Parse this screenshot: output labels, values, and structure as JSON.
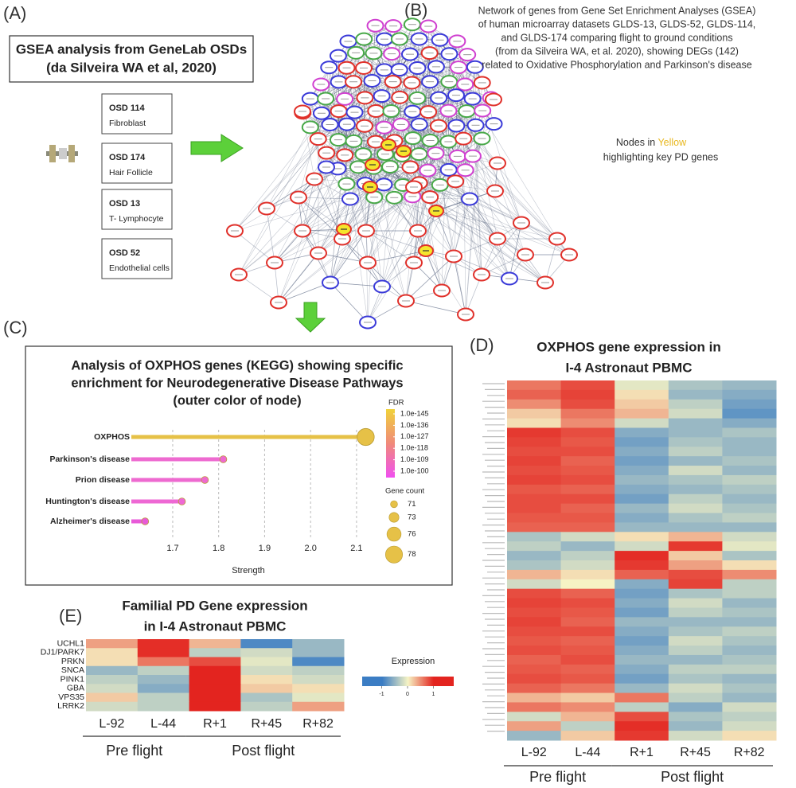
{
  "panels": {
    "A": {
      "label": "(A)",
      "title_lines": [
        "GSEA analysis from GeneLab OSDs",
        "(da Silveira WA et al, 2020)"
      ],
      "datasets": [
        {
          "id": "OSD 114",
          "tissue": "Fibroblast"
        },
        {
          "id": "OSD 174",
          "tissue": "Hair Follicle"
        },
        {
          "id": "OSD 13",
          "tissue": "T- Lymphocyte"
        },
        {
          "id": "OSD 52",
          "tissue": "Endothelial cells"
        }
      ]
    },
    "B": {
      "label": "(B)",
      "caption_lines": [
        "Network of genes from Gene Set Enrichment Analyses (GSEA)",
        "of human microarray datasets GLDS-13, GLDS-52, GLDS-114,",
        "and GLDS-174 comparing flight to ground conditions",
        "(from da Silveira WA, et al. 2020), showing DEGs (142)",
        "related to Oxidative Phosphorylation and Parkinson's disease"
      ],
      "note_prefix": "Nodes in",
      "note_highlight": "Yellow",
      "note_rest": "highlighting key PD genes"
    },
    "C": {
      "label": "(C)"
    },
    "D": {
      "label": "(D)"
    },
    "E": {
      "label": "(E)"
    }
  },
  "chart_data": [
    {
      "type": "lollipop",
      "title_lines": [
        "Analysis of OXPHOS genes (KEGG) showing specific",
        "enrichment for Neurodegenerative Disease Pathways",
        "(outer color of node)"
      ],
      "categories": [
        "OXPHOS",
        "Parkinson's disease",
        "Prion disease",
        "Huntington's disease",
        "Alzheimer's disease"
      ],
      "label_colors": [
        "#111111",
        "#e8392b",
        "#2a2ae0",
        "#3a9a2a",
        "#e040d8"
      ],
      "values": [
        2.12,
        1.81,
        1.77,
        1.72,
        1.64
      ],
      "gene_counts": [
        78,
        71,
        71,
        71,
        71
      ],
      "colors": [
        "#e6c147",
        "#ee6ad0",
        "#ee6ad0",
        "#ee68d4",
        "#e85ad8"
      ],
      "xlabel": "Strength",
      "xlim": [
        1.61,
        2.14
      ],
      "xticks": [
        1.7,
        1.8,
        1.9,
        {
          "value": 2,
          "label": "2.0"
        },
        2.1
      ],
      "grid": true,
      "fdr_legend": {
        "title": "FDR",
        "colors": [
          "#f0d23a",
          "#f08a7a",
          "#f050f0"
        ],
        "ticks": [
          {
            "value": 1e-145,
            "label": "1.0e-145"
          },
          {
            "value": 1e-136,
            "label": "1.0e-136"
          },
          {
            "value": 1e-127,
            "label": "1.0e-127"
          },
          {
            "value": 1e-118,
            "label": "1.0e-118"
          },
          {
            "value": 1e-109,
            "label": "1.0e-109"
          },
          {
            "value": 1e-100,
            "label": "1.0e-100"
          }
        ]
      },
      "size_legend": {
        "title": "Gene count",
        "values": [
          71,
          73,
          76,
          78
        ],
        "color": "#e6c147"
      }
    },
    {
      "type": "heatmap",
      "title_lines": [
        "OXPHOS gene expression in",
        "I-4 Astronaut PBMC"
      ],
      "columns": [
        "L-92",
        "L-44",
        "R+1",
        "R+45",
        "R+82"
      ],
      "groups": [
        {
          "name": "Pre flight",
          "columns": [
            "L-92",
            "L-44"
          ]
        },
        {
          "name": "Post flight",
          "columns": [
            "R+1",
            "R+45",
            "R+82"
          ]
        }
      ],
      "zlim": [
        -1,
        1
      ],
      "colors": [
        "#3b7dc4",
        "#f6f3c4",
        "#e3241f"
      ],
      "values": [
        [
          0.6,
          0.8,
          -0.1,
          -0.4,
          -0.5
        ],
        [
          0.7,
          0.85,
          0.1,
          -0.5,
          -0.6
        ],
        [
          0.5,
          0.8,
          0.2,
          -0.3,
          -0.7
        ],
        [
          0.2,
          0.6,
          0.3,
          -0.2,
          -0.8
        ],
        [
          0.1,
          0.5,
          -0.2,
          -0.5,
          -0.6
        ],
        [
          0.9,
          0.8,
          -0.6,
          -0.5,
          -0.4
        ],
        [
          0.85,
          0.75,
          -0.7,
          -0.4,
          -0.5
        ],
        [
          0.8,
          0.8,
          -0.6,
          -0.3,
          -0.5
        ],
        [
          0.85,
          0.7,
          -0.7,
          -0.5,
          -0.4
        ],
        [
          0.8,
          0.75,
          -0.6,
          -0.2,
          -0.5
        ],
        [
          0.85,
          0.8,
          -0.5,
          -0.4,
          -0.3
        ],
        [
          0.75,
          0.7,
          -0.6,
          -0.5,
          -0.4
        ],
        [
          0.8,
          0.8,
          -0.7,
          -0.3,
          -0.5
        ],
        [
          0.8,
          0.7,
          -0.5,
          -0.2,
          -0.4
        ],
        [
          0.75,
          0.75,
          -0.6,
          -0.4,
          -0.3
        ],
        [
          0.7,
          0.7,
          -0.5,
          -0.5,
          -0.5
        ],
        [
          -0.4,
          -0.2,
          0.1,
          0.3,
          -0.2
        ],
        [
          -0.3,
          -0.5,
          -0.2,
          0.9,
          -0.1
        ],
        [
          -0.5,
          -0.3,
          0.95,
          0.2,
          -0.4
        ],
        [
          -0.4,
          -0.2,
          0.9,
          0.4,
          0.1
        ],
        [
          0.3,
          0.1,
          0.7,
          0.8,
          0.5
        ],
        [
          -0.2,
          0.0,
          -0.6,
          0.85,
          -0.3
        ],
        [
          0.8,
          0.7,
          -0.7,
          -0.4,
          -0.3
        ],
        [
          0.85,
          0.8,
          -0.6,
          -0.2,
          -0.5
        ],
        [
          0.8,
          0.75,
          -0.7,
          -0.3,
          -0.4
        ],
        [
          0.85,
          0.7,
          -0.5,
          -0.5,
          -0.5
        ],
        [
          0.8,
          0.8,
          -0.6,
          -0.4,
          -0.3
        ],
        [
          0.75,
          0.7,
          -0.7,
          -0.2,
          -0.4
        ],
        [
          0.8,
          0.75,
          -0.6,
          -0.3,
          -0.5
        ],
        [
          0.7,
          0.8,
          -0.5,
          -0.5,
          -0.4
        ],
        [
          0.75,
          0.7,
          -0.6,
          -0.3,
          -0.3
        ],
        [
          0.8,
          0.75,
          -0.7,
          -0.4,
          -0.5
        ],
        [
          0.7,
          0.6,
          -0.5,
          -0.2,
          -0.4
        ],
        [
          0.3,
          0.2,
          0.6,
          -0.3,
          -0.5
        ],
        [
          0.6,
          0.5,
          -0.3,
          -0.6,
          -0.2
        ],
        [
          -0.2,
          0.3,
          0.8,
          -0.4,
          -0.3
        ],
        [
          0.4,
          -0.3,
          0.95,
          -0.5,
          -0.2
        ],
        [
          -0.5,
          0.2,
          0.9,
          -0.2,
          0.1
        ]
      ]
    },
    {
      "type": "heatmap",
      "title_lines": [
        "Familial PD Gene expression",
        "in I-4 Astronaut PBMC"
      ],
      "rows": [
        "UCHL1",
        "DJ1/PARK7",
        "PRKN",
        "SNCA",
        "PINK1",
        "GBA",
        "VPS35",
        "LRRK2"
      ],
      "columns": [
        "L-92",
        "L-44",
        "R+1",
        "R+45",
        "R+82"
      ],
      "groups": [
        {
          "name": "Pre flight",
          "columns": [
            "L-92",
            "L-44"
          ]
        },
        {
          "name": "Post flight",
          "columns": [
            "R+1",
            "R+45",
            "R+82"
          ]
        }
      ],
      "zlim": [
        -1,
        1
      ],
      "colors": [
        "#3b7dc4",
        "#f6f3c4",
        "#e3241f"
      ],
      "values": [
        [
          0.4,
          0.95,
          0.3,
          -0.9,
          -0.5
        ],
        [
          0.1,
          0.95,
          -0.3,
          -0.2,
          -0.5
        ],
        [
          0.1,
          0.6,
          0.8,
          -0.1,
          -0.9
        ],
        [
          -0.5,
          -0.3,
          1,
          -0.2,
          -0.3
        ],
        [
          -0.3,
          -0.5,
          1,
          0.1,
          -0.2
        ],
        [
          -0.2,
          -0.6,
          1,
          0.2,
          0.1
        ],
        [
          0.2,
          -0.3,
          1,
          -0.4,
          -0.1
        ],
        [
          -0.2,
          -0.3,
          1,
          -0.3,
          0.4
        ]
      ],
      "legend": {
        "title": "Expression",
        "ticks": [
          -1,
          0,
          1
        ]
      }
    }
  ]
}
